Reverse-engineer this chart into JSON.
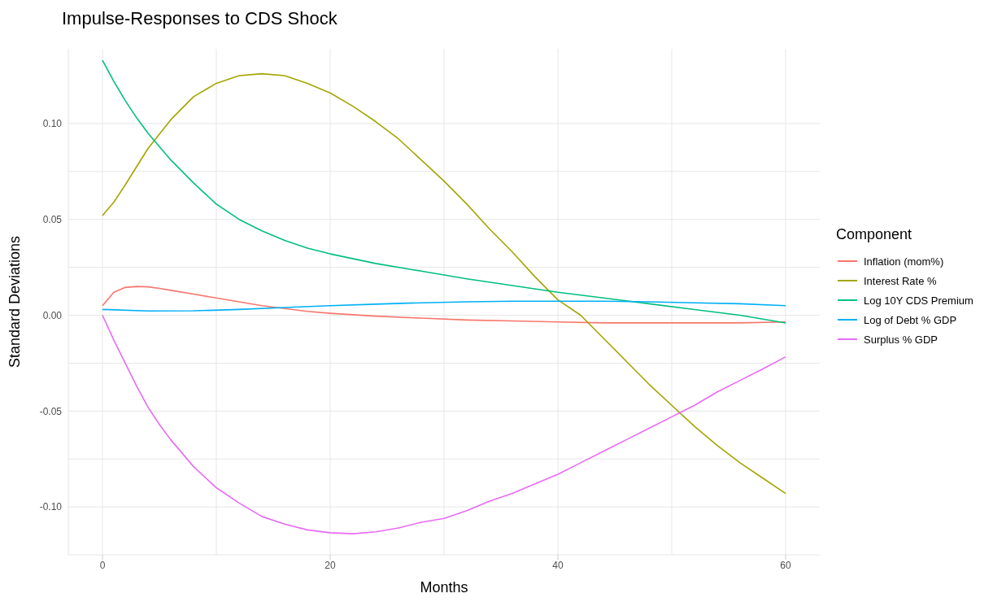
{
  "chart_data": {
    "type": "line",
    "title": "Impulse-Responses to CDS Shock",
    "xlabel": "Months",
    "ylabel": "Standard Deviations",
    "legend_title": "Component",
    "legend": "right",
    "grid": true,
    "marker": "none",
    "line_style": "solid",
    "xlim": [
      -3,
      63
    ],
    "xticks": [
      0,
      20,
      40,
      60
    ],
    "ylim": [
      -0.125,
      0.139
    ],
    "yticks": [
      {
        "value": -0.1,
        "label": "-0.10"
      },
      {
        "value": -0.05,
        "label": "-0.05"
      },
      {
        "value": 0,
        "label": "0.00"
      },
      {
        "value": 0.05,
        "label": "0.05"
      },
      {
        "value": 0.1,
        "label": "0.10"
      }
    ],
    "series": [
      {
        "name": "Inflation (mom%)",
        "color": "#f8766d",
        "x": [
          0,
          1,
          2,
          3,
          4,
          5,
          6,
          8,
          10,
          12,
          14,
          16,
          18,
          20,
          24,
          28,
          32,
          36,
          40,
          44,
          48,
          52,
          56,
          60
        ],
        "values": [
          0.005,
          0.012,
          0.0145,
          0.015,
          0.0148,
          0.014,
          0.013,
          0.011,
          0.009,
          0.007,
          0.005,
          0.0035,
          0.002,
          0.001,
          -0.0005,
          -0.0015,
          -0.0025,
          -0.003,
          -0.0035,
          -0.004,
          -0.004,
          -0.004,
          -0.004,
          -0.0035
        ]
      },
      {
        "name": "Interest Rate %",
        "color": "#a3a500",
        "x": [
          0,
          1,
          2,
          4,
          6,
          8,
          10,
          12,
          14,
          16,
          18,
          20,
          22,
          24,
          26,
          28,
          30,
          32,
          34,
          36,
          38,
          40,
          42,
          44,
          46,
          48,
          50,
          52,
          54,
          56,
          58,
          60
        ],
        "values": [
          0.052,
          0.059,
          0.068,
          0.087,
          0.102,
          0.114,
          0.121,
          0.125,
          0.126,
          0.125,
          0.121,
          0.116,
          0.109,
          0.101,
          0.092,
          0.081,
          0.07,
          0.058,
          0.045,
          0.033,
          0.02,
          0.008,
          0.0,
          -0.012,
          -0.024,
          -0.036,
          -0.047,
          -0.058,
          -0.068,
          -0.077,
          -0.085,
          -0.093
        ]
      },
      {
        "name": "Log 10Y CDS Premium",
        "color": "#00bf7d",
        "x": [
          0,
          1,
          2,
          3,
          4,
          5,
          6,
          8,
          10,
          12,
          14,
          16,
          18,
          20,
          24,
          28,
          32,
          36,
          40,
          44,
          48,
          52,
          56,
          60
        ],
        "values": [
          0.133,
          0.122,
          0.112,
          0.103,
          0.095,
          0.088,
          0.081,
          0.069,
          0.058,
          0.05,
          0.044,
          0.039,
          0.035,
          0.032,
          0.027,
          0.023,
          0.019,
          0.0155,
          0.012,
          0.009,
          0.006,
          0.003,
          0.0,
          -0.004
        ]
      },
      {
        "name": "Log of Debt % GDP",
        "color": "#00b0f6",
        "x": [
          0,
          4,
          8,
          12,
          16,
          20,
          24,
          28,
          32,
          36,
          40,
          44,
          48,
          52,
          56,
          60
        ],
        "values": [
          0.003,
          0.0022,
          0.0023,
          0.003,
          0.004,
          0.005,
          0.0058,
          0.0065,
          0.007,
          0.0073,
          0.0073,
          0.0073,
          0.007,
          0.0065,
          0.006,
          0.005
        ]
      },
      {
        "name": "Surplus % GDP",
        "color": "#e76bf3",
        "x": [
          0,
          1,
          2,
          3,
          4,
          5,
          6,
          8,
          10,
          12,
          14,
          16,
          18,
          20,
          22,
          24,
          26,
          28,
          30,
          32,
          34,
          36,
          38,
          40,
          42,
          44,
          46,
          48,
          50,
          52,
          54,
          56,
          58,
          60
        ],
        "values": [
          0.0,
          -0.013,
          -0.025,
          -0.037,
          -0.048,
          -0.057,
          -0.065,
          -0.079,
          -0.09,
          -0.098,
          -0.105,
          -0.109,
          -0.112,
          -0.1135,
          -0.114,
          -0.113,
          -0.111,
          -0.108,
          -0.106,
          -0.102,
          -0.097,
          -0.093,
          -0.088,
          -0.083,
          -0.077,
          -0.071,
          -0.065,
          -0.059,
          -0.053,
          -0.047,
          -0.04,
          -0.034,
          -0.028,
          -0.0217
        ]
      }
    ]
  }
}
